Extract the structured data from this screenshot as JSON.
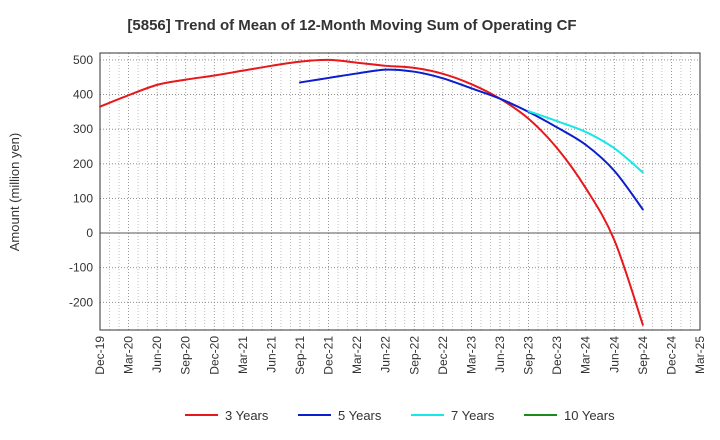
{
  "chart_data": {
    "type": "line",
    "title": "[5856]  Trend of Mean of 12-Month Moving Sum of Operating CF",
    "xlabel": "",
    "ylabel": "Amount (million yen)",
    "ylim": [
      -280,
      520
    ],
    "yticks": [
      500,
      400,
      300,
      200,
      100,
      0,
      -100,
      -200
    ],
    "categories": [
      "Dec-19",
      "Mar-20",
      "Jun-20",
      "Sep-20",
      "Dec-20",
      "Mar-21",
      "Jun-21",
      "Sep-21",
      "Dec-21",
      "Mar-22",
      "Jun-22",
      "Sep-22",
      "Dec-22",
      "Mar-23",
      "Jun-23",
      "Sep-23",
      "Dec-23",
      "Mar-24",
      "Jun-24",
      "Sep-24",
      "Dec-24",
      "Mar-25"
    ],
    "series": [
      {
        "name": "3 Years",
        "color": "#e8171b",
        "points": [
          [
            "Dec-19",
            365
          ],
          [
            "Mar-20",
            398
          ],
          [
            "Jun-20",
            428
          ],
          [
            "Sep-20",
            443
          ],
          [
            "Dec-20",
            455
          ],
          [
            "Mar-21",
            469
          ],
          [
            "Jun-21",
            483
          ],
          [
            "Sep-21",
            495
          ],
          [
            "Dec-21",
            500
          ],
          [
            "Mar-22",
            492
          ],
          [
            "Jun-22",
            483
          ],
          [
            "Sep-22",
            477
          ],
          [
            "Dec-22",
            460
          ],
          [
            "Mar-23",
            430
          ],
          [
            "Jun-23",
            388
          ],
          [
            "Sep-23",
            330
          ],
          [
            "Dec-23",
            245
          ],
          [
            "Mar-24",
            130
          ],
          [
            "Jun-24",
            -20
          ],
          [
            "Sep-24",
            -265
          ]
        ]
      },
      {
        "name": "5 Years",
        "color": "#0a1fcb",
        "points": [
          [
            "Sep-21",
            435
          ],
          [
            "Dec-21",
            448
          ],
          [
            "Mar-22",
            461
          ],
          [
            "Jun-22",
            472
          ],
          [
            "Sep-22",
            466
          ],
          [
            "Dec-22",
            447
          ],
          [
            "Mar-23",
            418
          ],
          [
            "Jun-23",
            388
          ],
          [
            "Sep-23",
            350
          ],
          [
            "Dec-23",
            305
          ],
          [
            "Mar-24",
            255
          ],
          [
            "Jun-24",
            180
          ],
          [
            "Sep-24",
            68
          ]
        ]
      },
      {
        "name": "7 Years",
        "color": "#19e6e6",
        "points": [
          [
            "Sep-23",
            352
          ],
          [
            "Dec-23",
            323
          ],
          [
            "Mar-24",
            292
          ],
          [
            "Jun-24",
            245
          ],
          [
            "Sep-24",
            175
          ]
        ]
      },
      {
        "name": "10 Years",
        "color": "#1a8a1a",
        "points": []
      }
    ]
  }
}
